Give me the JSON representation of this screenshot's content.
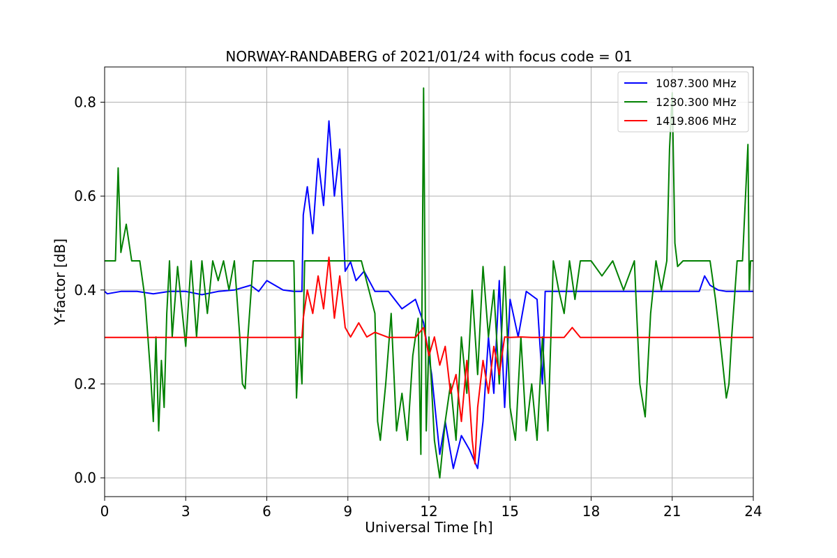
{
  "chart_data": {
    "type": "line",
    "title": "NORWAY-RANDABERG of 2021/01/24 with focus code = 01",
    "xlabel": "Universal Time [h]",
    "ylabel": "Y-factor [dB]",
    "xlim": [
      0,
      24
    ],
    "ylim": [
      -0.04,
      0.875
    ],
    "xticks": [
      0,
      3,
      6,
      9,
      12,
      15,
      18,
      21,
      24
    ],
    "xtick_labels": [
      "0",
      "3",
      "6",
      "9",
      "12",
      "15",
      "18",
      "21",
      "24"
    ],
    "yticks": [
      0.0,
      0.2,
      0.4,
      0.6,
      0.8
    ],
    "ytick_labels": [
      "0.0",
      "0.2",
      "0.4",
      "0.6",
      "0.8"
    ],
    "grid": true,
    "legend_position": "top-right",
    "series": [
      {
        "name": "1087.300 MHz",
        "color": "#0000ff",
        "x": [
          0,
          0.1,
          0.6,
          1.2,
          1.8,
          2.4,
          3.0,
          3.6,
          4.2,
          4.8,
          5.4,
          5.7,
          6.0,
          6.6,
          7.0,
          7.3,
          7.35,
          7.5,
          7.7,
          7.9,
          8.1,
          8.3,
          8.5,
          8.7,
          8.9,
          9.1,
          9.3,
          9.6,
          10.0,
          10.5,
          11.0,
          11.5,
          11.8,
          12.1,
          12.4,
          12.6,
          12.9,
          13.2,
          13.5,
          13.8,
          14.0,
          14.2,
          14.4,
          14.6,
          14.8,
          15.0,
          15.3,
          15.6,
          16.0,
          16.2,
          16.3,
          16.6,
          17.0,
          17.5,
          18.0,
          19.0,
          20.0,
          21.0,
          21.5,
          22.0,
          22.2,
          22.4,
          22.7,
          23.0,
          23.5,
          24.0
        ],
        "y": [
          0.397,
          0.392,
          0.397,
          0.397,
          0.392,
          0.397,
          0.397,
          0.39,
          0.397,
          0.4,
          0.41,
          0.397,
          0.42,
          0.4,
          0.397,
          0.397,
          0.56,
          0.62,
          0.52,
          0.68,
          0.58,
          0.76,
          0.6,
          0.7,
          0.44,
          0.46,
          0.42,
          0.44,
          0.397,
          0.397,
          0.36,
          0.38,
          0.33,
          0.22,
          0.05,
          0.12,
          0.02,
          0.09,
          0.06,
          0.02,
          0.12,
          0.3,
          0.18,
          0.42,
          0.15,
          0.38,
          0.3,
          0.397,
          0.38,
          0.2,
          0.397,
          0.397,
          0.397,
          0.397,
          0.397,
          0.397,
          0.397,
          0.397,
          0.397,
          0.397,
          0.43,
          0.41,
          0.4,
          0.397,
          0.397,
          0.397
        ]
      },
      {
        "name": "1230.300 MHz",
        "color": "#008000",
        "x": [
          0,
          0.4,
          0.5,
          0.6,
          0.8,
          1.0,
          1.3,
          1.5,
          1.7,
          1.8,
          1.9,
          2.0,
          2.1,
          2.2,
          2.3,
          2.4,
          2.5,
          2.7,
          3.0,
          3.2,
          3.4,
          3.6,
          3.8,
          4.0,
          4.2,
          4.4,
          4.6,
          4.8,
          5.0,
          5.1,
          5.2,
          5.3,
          5.5,
          6.0,
          6.5,
          7.0,
          7.1,
          7.2,
          7.3,
          7.4,
          8.0,
          8.5,
          9.0,
          9.5,
          10.0,
          10.1,
          10.2,
          10.4,
          10.6,
          10.8,
          11.0,
          11.2,
          11.4,
          11.6,
          11.7,
          11.8,
          11.9,
          12.0,
          12.2,
          12.4,
          12.6,
          12.8,
          13.0,
          13.2,
          13.4,
          13.6,
          13.8,
          14.0,
          14.2,
          14.4,
          14.6,
          14.8,
          15.0,
          15.2,
          15.4,
          15.6,
          15.8,
          16.0,
          16.2,
          16.4,
          16.6,
          16.8,
          17.0,
          17.2,
          17.4,
          17.6,
          17.8,
          18.0,
          18.4,
          18.8,
          19.2,
          19.6,
          19.8,
          20.0,
          20.2,
          20.4,
          20.6,
          20.8,
          20.9,
          21.0,
          21.1,
          21.2,
          21.4,
          21.6,
          22.0,
          22.4,
          22.6,
          22.8,
          23.0,
          23.1,
          23.2,
          23.4,
          23.6,
          23.8,
          23.85,
          23.9,
          24.0
        ],
        "y": [
          0.462,
          0.462,
          0.66,
          0.48,
          0.54,
          0.462,
          0.462,
          0.38,
          0.22,
          0.12,
          0.3,
          0.1,
          0.25,
          0.15,
          0.35,
          0.462,
          0.3,
          0.45,
          0.28,
          0.462,
          0.3,
          0.462,
          0.35,
          0.462,
          0.42,
          0.462,
          0.4,
          0.462,
          0.3,
          0.2,
          0.19,
          0.3,
          0.462,
          0.462,
          0.462,
          0.462,
          0.17,
          0.3,
          0.2,
          0.462,
          0.462,
          0.462,
          0.462,
          0.462,
          0.35,
          0.12,
          0.08,
          0.2,
          0.35,
          0.1,
          0.18,
          0.08,
          0.26,
          0.34,
          0.05,
          0.83,
          0.1,
          0.3,
          0.08,
          0.0,
          0.12,
          0.2,
          0.08,
          0.3,
          0.18,
          0.4,
          0.22,
          0.45,
          0.3,
          0.4,
          0.2,
          0.45,
          0.15,
          0.08,
          0.3,
          0.1,
          0.2,
          0.08,
          0.3,
          0.1,
          0.462,
          0.4,
          0.35,
          0.462,
          0.38,
          0.462,
          0.462,
          0.462,
          0.43,
          0.462,
          0.4,
          0.462,
          0.2,
          0.13,
          0.35,
          0.462,
          0.4,
          0.462,
          0.7,
          0.82,
          0.5,
          0.45,
          0.462,
          0.462,
          0.462,
          0.462,
          0.38,
          0.28,
          0.17,
          0.2,
          0.3,
          0.462,
          0.462,
          0.71,
          0.4,
          0.462,
          0.462
        ]
      },
      {
        "name": "1419.806 MHz",
        "color": "#ff0000",
        "x": [
          0,
          0.6,
          1.2,
          1.8,
          2.4,
          3.0,
          3.6,
          4.2,
          4.8,
          5.4,
          6.0,
          6.6,
          7.0,
          7.3,
          7.35,
          7.5,
          7.7,
          7.9,
          8.1,
          8.3,
          8.5,
          8.7,
          8.9,
          9.1,
          9.4,
          9.7,
          10.0,
          10.5,
          11.0,
          11.5,
          11.8,
          12.0,
          12.2,
          12.4,
          12.6,
          12.8,
          13.0,
          13.2,
          13.4,
          13.6,
          13.7,
          13.8,
          14.0,
          14.2,
          14.4,
          14.6,
          14.8,
          15.0,
          15.4,
          15.8,
          16.2,
          16.6,
          17.0,
          17.3,
          17.6,
          18.0,
          18.5,
          19.0,
          19.5,
          20.0,
          20.5,
          21.0,
          21.5,
          22.0,
          22.5,
          23.0,
          23.5,
          24.0
        ],
        "y": [
          0.299,
          0.299,
          0.299,
          0.299,
          0.299,
          0.299,
          0.299,
          0.299,
          0.299,
          0.299,
          0.299,
          0.299,
          0.299,
          0.299,
          0.34,
          0.4,
          0.35,
          0.43,
          0.36,
          0.47,
          0.34,
          0.43,
          0.32,
          0.3,
          0.33,
          0.3,
          0.31,
          0.299,
          0.299,
          0.299,
          0.32,
          0.26,
          0.3,
          0.24,
          0.28,
          0.18,
          0.22,
          0.12,
          0.25,
          0.08,
          0.03,
          0.15,
          0.25,
          0.18,
          0.28,
          0.22,
          0.3,
          0.299,
          0.3,
          0.299,
          0.299,
          0.299,
          0.299,
          0.32,
          0.299,
          0.299,
          0.299,
          0.299,
          0.299,
          0.299,
          0.299,
          0.299,
          0.299,
          0.299,
          0.299,
          0.299,
          0.299,
          0.299
        ]
      }
    ]
  }
}
